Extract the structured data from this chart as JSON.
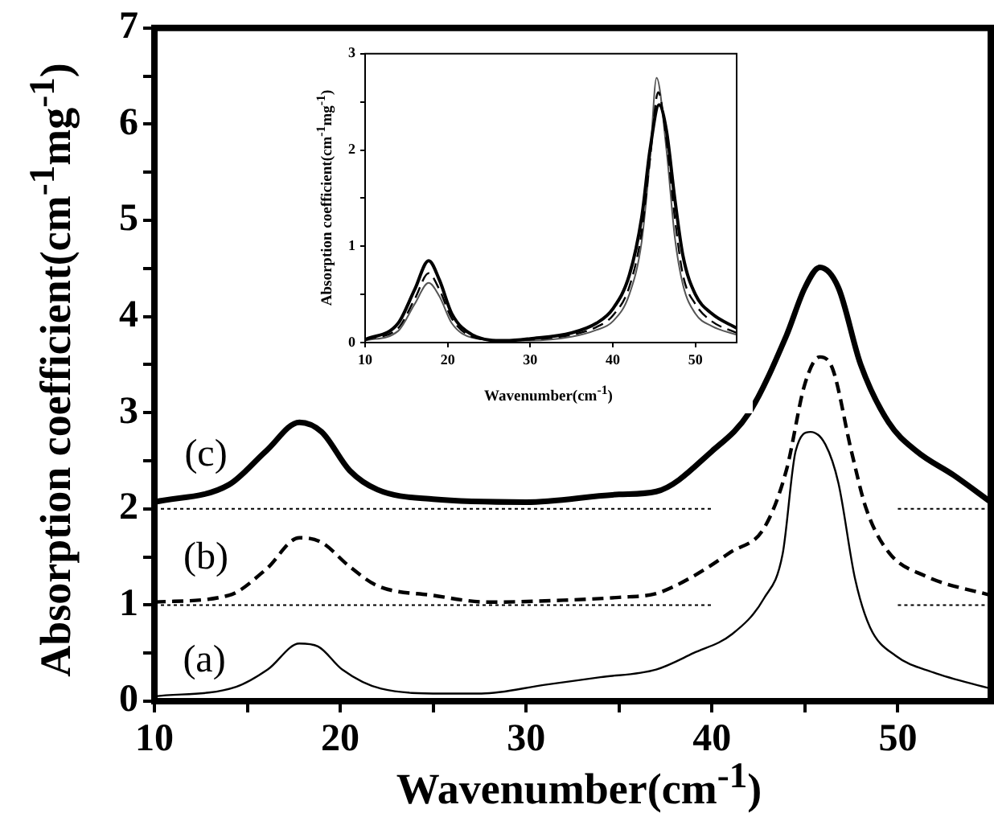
{
  "chart_data": [
    {
      "type": "line",
      "xlabel": "Wavenumber(cm$^{-1}$)",
      "ylabel": "Absorption coefficient(cm$^{-1}$mg$^{-1}$)",
      "xlim": [
        10,
        55
      ],
      "ylim": [
        0,
        7
      ],
      "xticks": [
        10,
        {
          "value": 15,
          "label": null
        },
        20,
        {
          "value": 25,
          "label": null
        },
        30,
        {
          "value": 35,
          "label": null
        },
        40,
        {
          "value": 45,
          "label": null
        },
        50
      ],
      "yticks": [
        0,
        {
          "value": 0.5,
          "label": null
        },
        1,
        {
          "value": 1.5,
          "label": null
        },
        2,
        {
          "value": 2.5,
          "label": null
        },
        3,
        {
          "value": 3.5,
          "label": null
        },
        4,
        {
          "value": 4.5,
          "label": null
        },
        5,
        {
          "value": 5.5,
          "label": null
        },
        6,
        {
          "value": 6.5,
          "label": null
        },
        7
      ],
      "marker": "none",
      "series": [
        {
          "color": "#000000",
          "line_style": "solid",
          "x": [
            10,
            14.4,
            16.1,
            17.8,
            18.8,
            20.1,
            22.2,
            25.5,
            27.6,
            31,
            34,
            37,
            39,
            41.1,
            42.8,
            43.8,
            44.5,
            45.3,
            46.1,
            46.8,
            47.7,
            48.5,
            49.9,
            51.9,
            55
          ],
          "values": [
            0.05,
            0.15,
            0.33,
            0.6,
            0.57,
            0.33,
            0.13,
            0.08,
            0.08,
            0.17,
            0.25,
            0.33,
            0.5,
            0.7,
            1.07,
            1.53,
            2.6,
            2.8,
            2.67,
            2.27,
            1.27,
            0.77,
            0.47,
            0.3,
            0.13
          ]
        },
        {
          "color": "#000000",
          "line_style": "dashed",
          "x": [
            10,
            14,
            16,
            17.8,
            19,
            20.5,
            22,
            25,
            28,
            32,
            35,
            37,
            39,
            41,
            42.8,
            44,
            45,
            45.8,
            46.5,
            47.5,
            48.3,
            49.5,
            51.5,
            55
          ],
          "values": [
            1.03,
            1.1,
            1.37,
            1.7,
            1.65,
            1.4,
            1.2,
            1.1,
            1.03,
            1.05,
            1.08,
            1.12,
            1.3,
            1.55,
            1.8,
            2.4,
            3.3,
            3.58,
            3.45,
            2.6,
            2.0,
            1.55,
            1.3,
            1.1
          ]
        },
        {
          "color": "#000000",
          "line_style": "solid",
          "x": [
            10,
            14,
            16,
            17.8,
            19,
            20.5,
            22,
            25,
            30,
            35,
            37,
            40,
            42,
            44,
            45,
            45.8,
            46.8,
            48,
            49.5,
            51,
            53,
            55
          ],
          "values": [
            2.07,
            2.25,
            2.6,
            2.9,
            2.8,
            2.4,
            2.2,
            2.1,
            2.07,
            2.15,
            2.18,
            2.6,
            3.0,
            3.8,
            4.3,
            4.51,
            4.3,
            3.5,
            2.9,
            2.6,
            2.35,
            2.07
          ]
        },
        {
          "color": "#000000",
          "line_style": "dotted",
          "x": [
            10,
            40,
            45,
            50,
            55
          ],
          "values": [
            1,
            1,
            null,
            1,
            1
          ]
        },
        {
          "color": "#000000",
          "line_style": "dotted",
          "x": [
            10,
            40,
            45,
            50,
            55
          ],
          "values": [
            2,
            2,
            null,
            2,
            2
          ]
        }
      ],
      "annotations": [
        "(c)",
        "(b)",
        "(a)"
      ]
    },
    {
      "type": "line",
      "xlabel": "Wavenumber(cm$^{-1}$)",
      "ylabel": "Absorption coefficient(cm$^{-1}$mg$^{-1}$)",
      "xlim": [
        10,
        55
      ],
      "ylim": [
        0,
        3
      ],
      "xticks": [
        10,
        20,
        30,
        40,
        50
      ],
      "yticks": [
        0,
        {
          "value": 0.5,
          "label": null
        },
        1,
        {
          "value": 1.5,
          "label": null
        },
        2,
        {
          "value": 2.5,
          "label": null
        },
        3
      ],
      "marker": "none",
      "series": [
        {
          "color": "#000000",
          "line_style": "solid",
          "x": [
            10,
            14,
            16,
            17.7,
            19,
            20.5,
            23,
            27,
            30,
            35,
            38,
            40,
            42,
            43.5,
            44.5,
            45.6,
            46.5,
            47.5,
            48.5,
            50,
            52,
            55
          ],
          "values": [
            0.03,
            0.2,
            0.55,
            0.85,
            0.65,
            0.3,
            0.08,
            0.02,
            0.04,
            0.1,
            0.2,
            0.35,
            0.7,
            1.3,
            2.0,
            2.47,
            2.2,
            1.5,
            0.9,
            0.5,
            0.3,
            0.15
          ]
        },
        {
          "color": "#000000",
          "line_style": "dashed",
          "x": [
            10,
            14,
            16,
            17.7,
            19,
            20.5,
            23,
            27,
            30,
            35,
            38,
            40,
            42,
            43.5,
            44.5,
            45.5,
            46.5,
            47.5,
            48.5,
            50,
            52,
            55
          ],
          "values": [
            0.03,
            0.15,
            0.45,
            0.72,
            0.55,
            0.25,
            0.06,
            0.02,
            0.03,
            0.08,
            0.16,
            0.28,
            0.58,
            1.15,
            1.9,
            2.6,
            2.1,
            1.3,
            0.7,
            0.4,
            0.22,
            0.1
          ]
        },
        {
          "color": "#555555",
          "line_style": "solid",
          "x": [
            10,
            14,
            16,
            17.7,
            19,
            20.5,
            23,
            27,
            30,
            35,
            38,
            40,
            42,
            43.5,
            44.5,
            45.3,
            46.5,
            47.5,
            48.5,
            50,
            52,
            55
          ],
          "values": [
            0.02,
            0.12,
            0.4,
            0.62,
            0.48,
            0.2,
            0.05,
            0.02,
            0.02,
            0.06,
            0.13,
            0.22,
            0.5,
            1.05,
            1.9,
            2.75,
            2.0,
            1.1,
            0.6,
            0.3,
            0.17,
            0.08
          ]
        }
      ]
    }
  ]
}
